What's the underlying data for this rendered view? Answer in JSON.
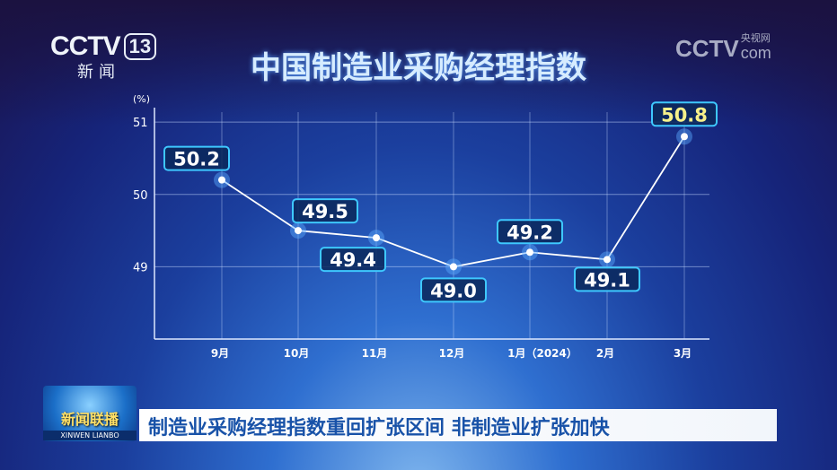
{
  "channel": {
    "logo": "CCTV",
    "number": "13",
    "sub": "新闻",
    "watermark": "CCTV",
    "watermark_sub": "央视网",
    "watermark_domain": "com"
  },
  "title": "中国制造业采购经理指数",
  "chart_data": {
    "type": "line",
    "title": "中国制造业采购经理指数",
    "ylabel": "(%)",
    "categories": [
      "9月",
      "10月",
      "11月",
      "12月",
      "1月（2024）",
      "2月",
      "3月"
    ],
    "values": [
      50.2,
      49.5,
      49.4,
      49.0,
      49.2,
      49.1,
      50.8
    ],
    "data_labels": [
      "50.2",
      "49.5",
      "49.4",
      "49.0",
      "49.2",
      "49.1",
      "50.8"
    ],
    "yticks": [
      "49",
      "50",
      "51"
    ],
    "ylim": [
      48,
      51.2
    ],
    "grid": true,
    "colors": {
      "line": "#ffffff",
      "label": "#ffffff",
      "highlight": "#f6f08a",
      "box": "#3ec8ff"
    }
  },
  "footer": {
    "program_cn": "新闻联播",
    "program_en": "XINWEN LIANBO",
    "headline": "制造业采购经理指数重回扩张区间 非制造业扩张加快"
  }
}
